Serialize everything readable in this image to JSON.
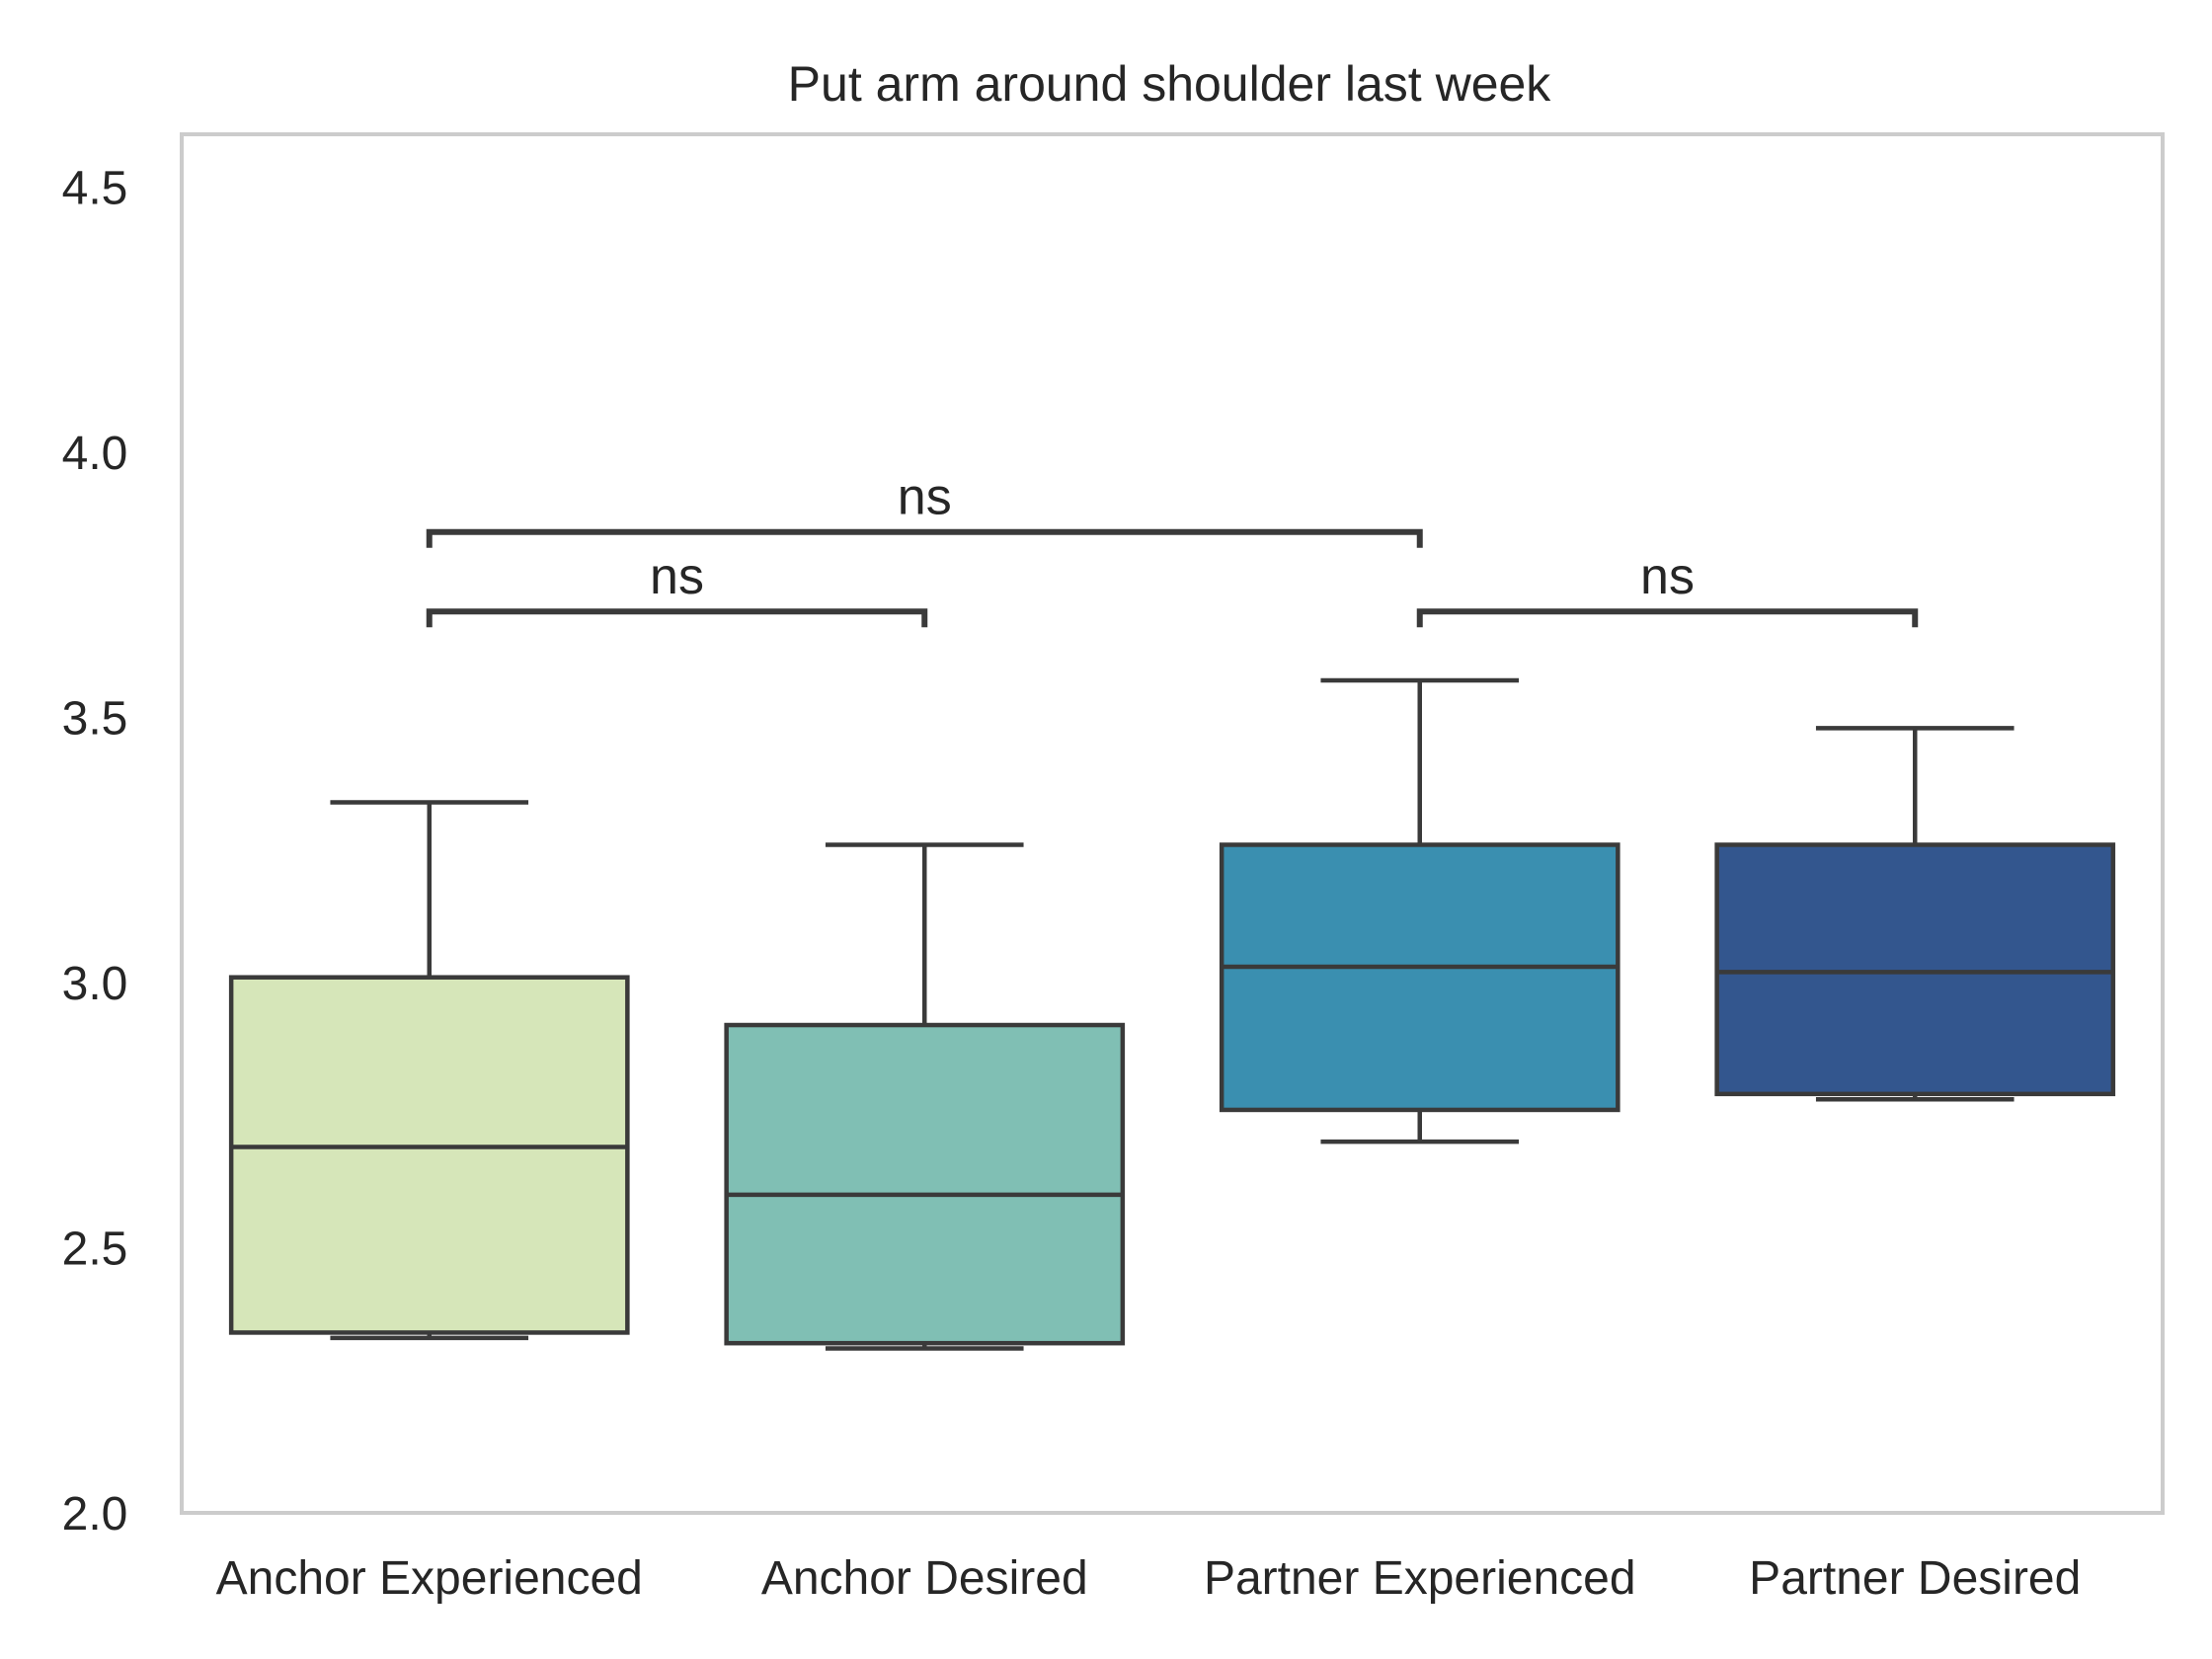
{
  "chart_data": {
    "type": "box",
    "title": "Put arm around shoulder last week",
    "xlabel": "",
    "ylabel": "",
    "ylim": [
      2.0,
      4.6
    ],
    "yticks": [
      "2.0",
      "2.5",
      "3.0",
      "3.5",
      "4.0",
      "4.5"
    ],
    "ytick_values": [
      2.0,
      2.5,
      3.0,
      3.5,
      4.0,
      4.5
    ],
    "grid": false,
    "categories": [
      "Anchor Experienced",
      "Anchor Desired",
      "Partner Experienced",
      "Partner Desired"
    ],
    "boxes": [
      {
        "category": "Anchor Experienced",
        "whisker_low": 2.33,
        "q1": 2.34,
        "median": 2.69,
        "q3": 3.01,
        "whisker_high": 3.34,
        "color": "#d6e6b9"
      },
      {
        "category": "Anchor Desired",
        "whisker_low": 2.31,
        "q1": 2.32,
        "median": 2.6,
        "q3": 2.92,
        "whisker_high": 3.26,
        "color": "#80bfb4"
      },
      {
        "category": "Partner Experienced",
        "whisker_low": 2.7,
        "q1": 2.76,
        "median": 3.03,
        "q3": 3.26,
        "whisker_high": 3.57,
        "color": "#3a8fb0"
      },
      {
        "category": "Partner Desired",
        "whisker_low": 2.78,
        "q1": 2.79,
        "median": 3.02,
        "q3": 3.26,
        "whisker_high": 3.48,
        "color": "#33568e"
      }
    ],
    "annotations": [
      {
        "from": "Anchor Experienced",
        "to": "Anchor Desired",
        "y": 3.7,
        "label": "ns"
      },
      {
        "from": "Anchor Experienced",
        "to": "Partner Experienced",
        "y": 3.85,
        "label": "ns"
      },
      {
        "from": "Partner Experienced",
        "to": "Partner Desired",
        "y": 3.7,
        "label": "ns"
      }
    ]
  }
}
